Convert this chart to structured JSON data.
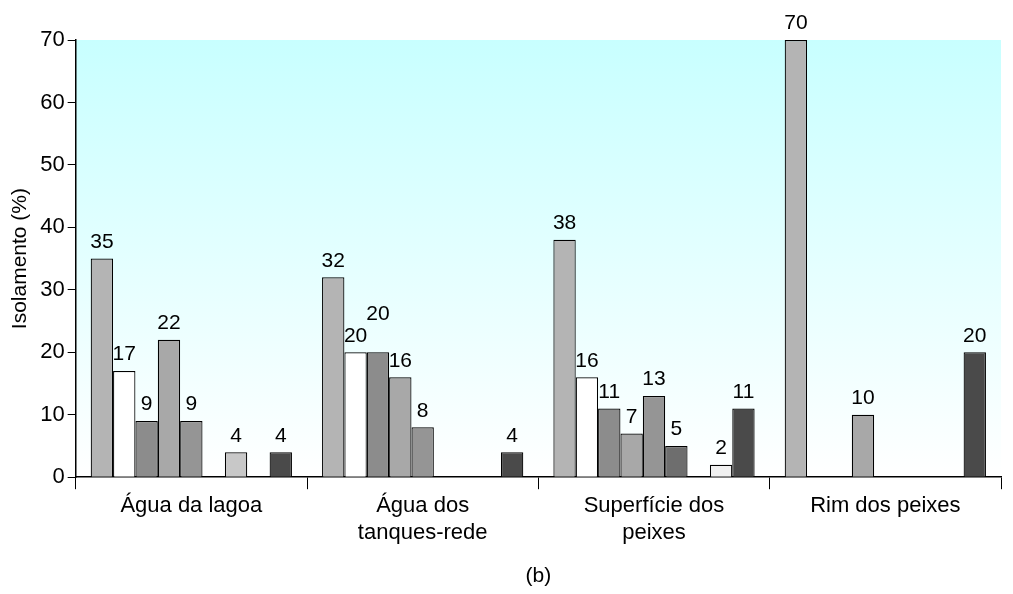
{
  "chart_data": {
    "type": "bar",
    "ylabel": "Isolamento (%)",
    "annotations": [
      "(b)"
    ],
    "categories": [
      "Água da lagoa",
      "Água dos tanques-rede",
      "Superfície dos peixes",
      "Rim dos peixes"
    ],
    "series": [
      {
        "color": "#b4b4b4",
        "values": [
          35,
          32,
          38,
          70
        ]
      },
      {
        "color": "#ffffff",
        "values": [
          17,
          20,
          16,
          null
        ]
      },
      {
        "color": "#8c8c8c",
        "values": [
          9,
          20,
          11,
          null
        ]
      },
      {
        "color": "#a8a8a8",
        "values": [
          22,
          16,
          7,
          10
        ]
      },
      {
        "color": "#959595",
        "values": [
          9,
          8,
          13,
          null
        ]
      },
      {
        "color": "#6e6e6e",
        "values": [
          null,
          null,
          5,
          null
        ]
      },
      {
        "color": "#c8c8c8",
        "values": [
          4,
          null,
          null,
          null
        ]
      },
      {
        "color": "#f0f0f0",
        "values": [
          null,
          null,
          2,
          null
        ]
      },
      {
        "color": "#4a4a4a",
        "values": [
          4,
          4,
          11,
          20
        ]
      }
    ],
    "ylim": [
      0,
      70
    ],
    "yticks": [
      0,
      10,
      20,
      30,
      40,
      50,
      60,
      70
    ],
    "grid": false,
    "legend": false,
    "data_labels": true
  }
}
